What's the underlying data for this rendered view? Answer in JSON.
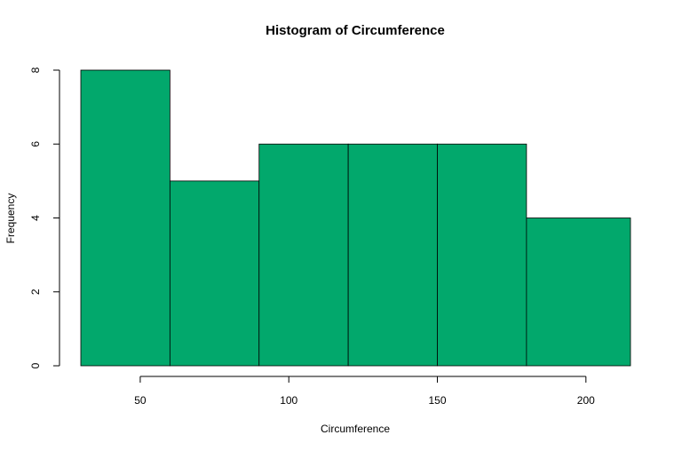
{
  "chart_data": {
    "type": "bar",
    "subtype": "histogram",
    "title": "Histogram of Circumference",
    "xlabel": "Circumference",
    "ylabel": "Frequency",
    "bin_edges": [
      30,
      60,
      90,
      120,
      150,
      180,
      215
    ],
    "values": [
      8,
      5,
      6,
      6,
      6,
      4
    ],
    "xlim": [
      30,
      215
    ],
    "ylim": [
      0,
      8
    ],
    "x_ticks": [
      50,
      100,
      150,
      200
    ],
    "y_ticks": [
      0,
      2,
      4,
      6,
      8
    ],
    "bar_color": "#02A86C",
    "border_color": "#000000",
    "grid": false,
    "legend": "none"
  }
}
